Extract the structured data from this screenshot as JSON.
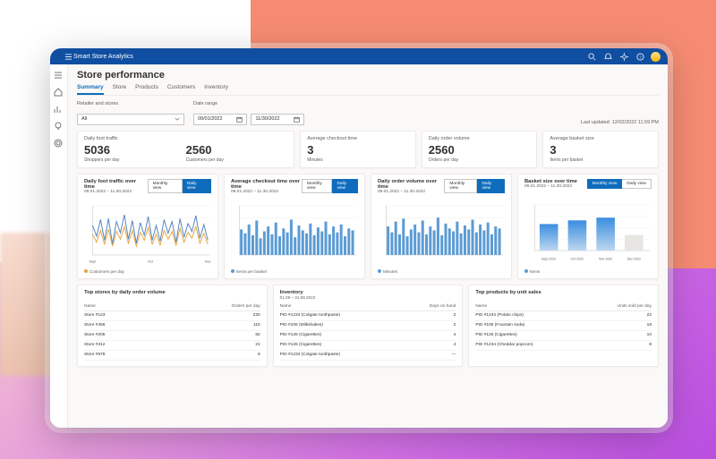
{
  "app": {
    "name": "Smart Store Analytics"
  },
  "page": {
    "title": "Store performance",
    "tabs": [
      "Summary",
      "Store",
      "Products",
      "Customers",
      "Inventory"
    ],
    "active_tab": 0,
    "last_updated_label": "Last updated:",
    "last_updated_value": "12/02/2022 11:59  PM"
  },
  "filters": {
    "retailer_label": "Retailer and stores",
    "retailer_value": "All",
    "date_label": "Date range",
    "date_from": "09/01/2022",
    "date_to": "11/30/2022"
  },
  "kpis": {
    "foot_traffic": {
      "title": "Daily foot traffic",
      "shoppers_value": "5036",
      "shoppers_sub": "Shoppers per day",
      "customers_value": "2560",
      "customers_sub": "Customers per day"
    },
    "checkout": {
      "title": "Average checkout time",
      "value": "3",
      "sub": "Minutes"
    },
    "orders": {
      "title": "Daily order volume",
      "value": "2560",
      "sub": "Orders per day"
    },
    "basket": {
      "title": "Average basket size",
      "value": "3",
      "sub": "Items per basket"
    }
  },
  "colors": {
    "bar": "#5b9bd5",
    "bar2": "#a6c8ec",
    "line1": "#4f81bd",
    "line2": "#e8a33d",
    "axis": "#d0cecb",
    "grid": "#f0efed",
    "text": "#605e5c",
    "grad_top": "#3a8ddf",
    "grad_bottom": "#bdd7f0",
    "muted_bar": "#e8e6e3"
  },
  "view_labels": {
    "monthly": "Monthly view",
    "daily": "Daily view"
  },
  "charts": {
    "foot_traffic": {
      "type": "line",
      "title": "Daily foot traffic over time",
      "range": "09.01.2022 – 11.30.2022",
      "active_view": "daily",
      "x_ticks": [
        "Sept",
        "Oct",
        "Nov"
      ],
      "ylim": [
        0,
        100
      ],
      "series_a": [
        60,
        38,
        72,
        30,
        74,
        22,
        68,
        45,
        82,
        32,
        70,
        24,
        66,
        40,
        78,
        30,
        60,
        28,
        72,
        44,
        68,
        26,
        74,
        36,
        64,
        48,
        80,
        34,
        62,
        30
      ],
      "series_b": [
        42,
        26,
        50,
        22,
        52,
        18,
        48,
        32,
        58,
        24,
        50,
        18,
        46,
        30,
        56,
        22,
        42,
        20,
        50,
        32,
        48,
        20,
        54,
        26,
        46,
        34,
        58,
        24,
        44,
        22
      ],
      "legend": [
        {
          "color": "#e8a33d",
          "label": "Customers per day"
        }
      ]
    },
    "checkout": {
      "type": "bar",
      "title": "Average checkout time over time",
      "range": "09.01.2022 – 11.30.2022",
      "active_view": "daily",
      "ylim": [
        0,
        100
      ],
      "values": [
        52,
        44,
        62,
        40,
        70,
        34,
        48,
        58,
        42,
        66,
        38,
        54,
        46,
        72,
        36,
        60,
        50,
        44,
        64,
        40,
        56,
        48,
        68,
        42,
        58,
        46,
        62,
        38,
        54,
        50
      ],
      "legend_label": "Items per basket"
    },
    "orders": {
      "type": "bar",
      "title": "Daily order volume over time",
      "range": "09.01.2022 – 11.30.2022",
      "active_view": "daily",
      "ylim": [
        0,
        100
      ],
      "values": [
        58,
        46,
        68,
        42,
        74,
        38,
        52,
        62,
        46,
        70,
        42,
        58,
        50,
        76,
        40,
        64,
        54,
        48,
        68,
        44,
        60,
        52,
        72,
        46,
        62,
        50,
        66,
        42,
        58,
        54
      ],
      "legend_label": "Minutes"
    },
    "basket": {
      "type": "bar-grouped",
      "title": "Basket size over time",
      "range": "09.01.2022 – 11.30.2022",
      "active_view": "monthly",
      "ylim": [
        0,
        100
      ],
      "categories": [
        "Sept 2022",
        "Oct 2022",
        "Nov 2022",
        "Dec 2022"
      ],
      "values": [
        58,
        66,
        72,
        34
      ],
      "muted_index": 3,
      "x_axis_label": "Period",
      "legend_label": "Items"
    }
  },
  "tables": {
    "top_stores": {
      "title": "Top stores by daily order volume",
      "columns": [
        "Name",
        "Orders per day"
      ],
      "rows": [
        [
          "Store #123",
          "230"
        ],
        [
          "Store #456",
          "115"
        ],
        [
          "Store #205",
          "82"
        ],
        [
          "Store #312",
          "21"
        ],
        [
          "Store #678",
          "8"
        ]
      ]
    },
    "inventory": {
      "title": "Inventory",
      "sub": "01.09 – 31.08.2022",
      "columns": [
        "Name",
        "Days on hand"
      ],
      "rows": [
        [
          "PID #1234 (Colgate toothpaste)",
          "2"
        ],
        [
          "PID #106 (Milkshakes)",
          "2"
        ],
        [
          "PID #126 (Cigarettes)",
          "4"
        ],
        [
          "PID #126 (Cigarettes)",
          "4"
        ],
        [
          "PID #1234 (Colgate toothpaste)",
          "—"
        ]
      ]
    },
    "top_products": {
      "title": "Top products by unit sales",
      "columns": [
        "Name",
        "Units sold per day"
      ],
      "rows": [
        [
          "PID #1234 (Potato chips)",
          "22"
        ],
        [
          "PID #106 (Fountain soda)",
          "18"
        ],
        [
          "PID #126 (Cigarettes)",
          "10"
        ],
        [
          "PID #1234 (Cheddar popcorn)",
          "8"
        ]
      ]
    }
  }
}
